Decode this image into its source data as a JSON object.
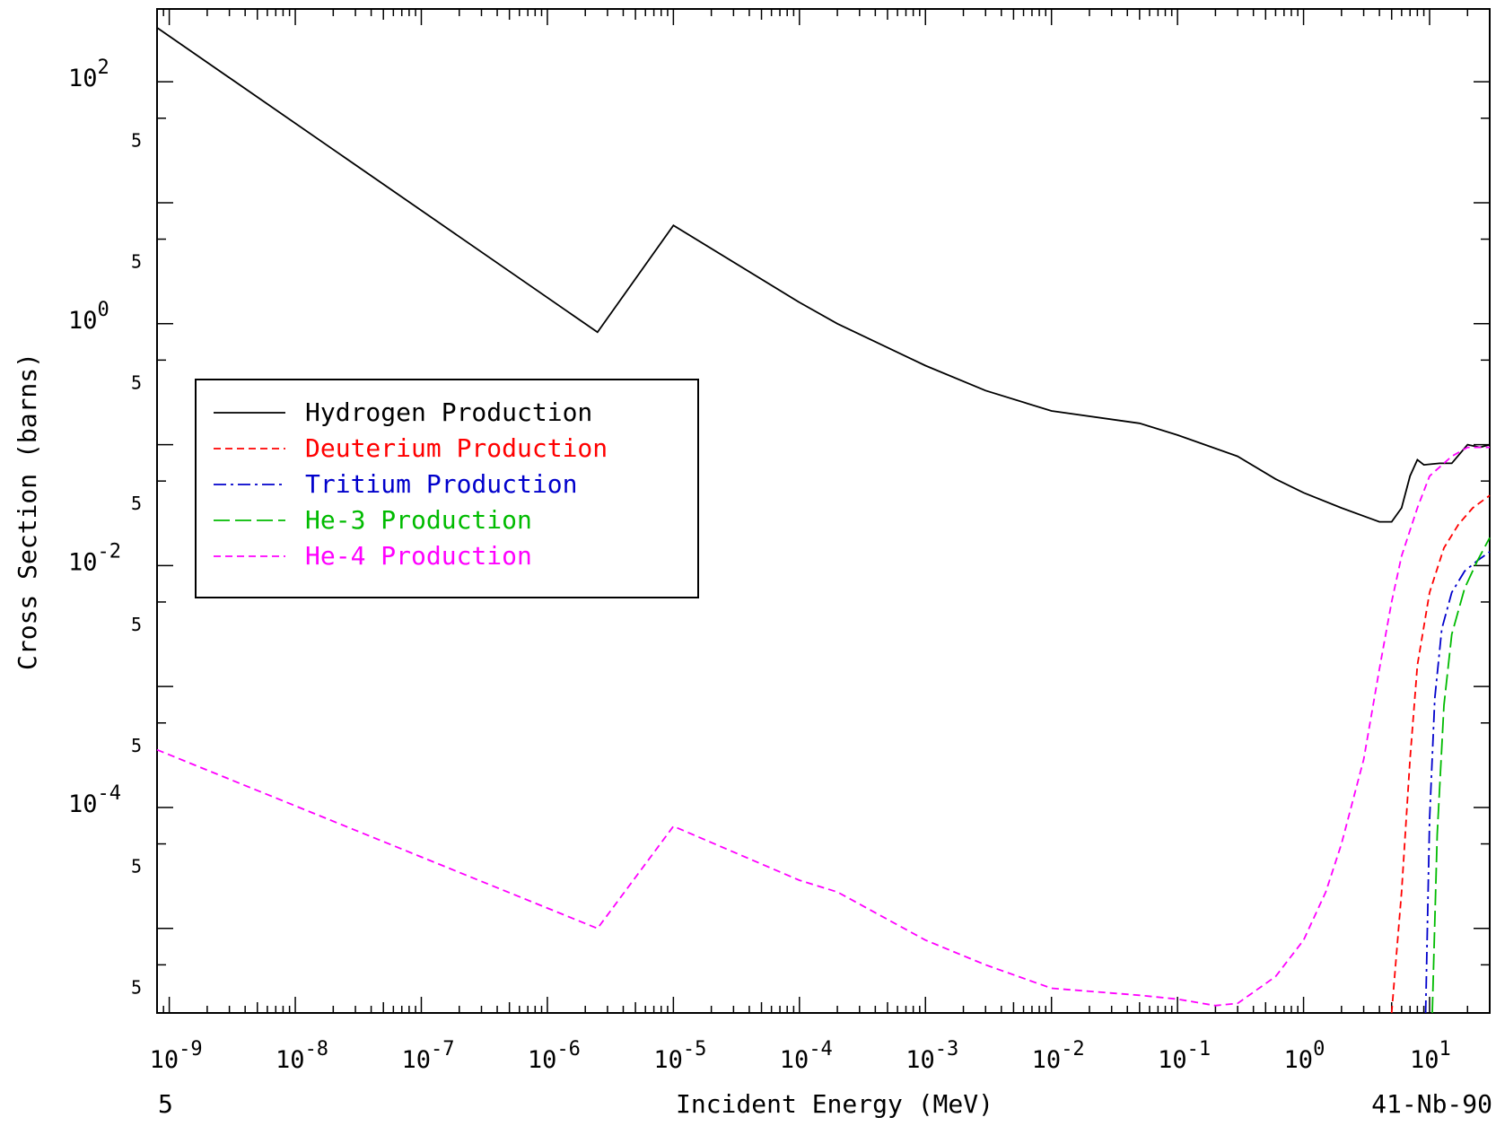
{
  "chart_data": {
    "type": "line",
    "title": "",
    "xlabel": "Incident Energy (MeV)",
    "ylabel": "Cross Section (barns)",
    "xscale": "log",
    "yscale": "log",
    "xlim": [
      8e-10,
      30
    ],
    "ylim": [
      2e-06,
      400
    ],
    "x_tick_labels": [
      {
        "base": "10",
        "exp": "-9"
      },
      {
        "base": "10",
        "exp": "-8"
      },
      {
        "base": "10",
        "exp": "-7"
      },
      {
        "base": "10",
        "exp": "-6"
      },
      {
        "base": "10",
        "exp": "-5"
      },
      {
        "base": "10",
        "exp": "-4"
      },
      {
        "base": "10",
        "exp": "-3"
      },
      {
        "base": "10",
        "exp": "-2"
      },
      {
        "base": "10",
        "exp": "-1"
      },
      {
        "base": "10",
        "exp": "0"
      },
      {
        "base": "10",
        "exp": "1"
      }
    ],
    "y_tick_labels": [
      {
        "base": "10",
        "exp": "2"
      },
      {
        "base": "10",
        "exp": "0"
      },
      {
        "base": "10",
        "exp": "-2"
      },
      {
        "base": "10",
        "exp": "-4"
      }
    ],
    "minor_label": "5",
    "corner_left": "5",
    "corner_right": "41-Nb-90",
    "legend_position": "left-middle",
    "grid": false,
    "series": [
      {
        "name": "Hydrogen Production",
        "color": "#000000",
        "dash": "solid",
        "points": [
          [
            8e-10,
            280
          ],
          [
            2.5e-06,
            0.85
          ],
          [
            1e-05,
            6.5
          ],
          [
            0.0001,
            1.5
          ],
          [
            0.0002,
            1.0
          ],
          [
            0.001,
            0.45
          ],
          [
            0.003,
            0.28
          ],
          [
            0.01,
            0.19
          ],
          [
            0.05,
            0.15
          ],
          [
            0.1,
            0.12
          ],
          [
            0.3,
            0.08
          ],
          [
            0.6,
            0.052
          ],
          [
            1,
            0.04
          ],
          [
            2,
            0.03
          ],
          [
            4,
            0.023
          ],
          [
            5,
            0.023
          ],
          [
            6,
            0.03
          ],
          [
            7,
            0.055
          ],
          [
            8,
            0.075
          ],
          [
            9,
            0.068
          ],
          [
            12,
            0.07
          ],
          [
            15,
            0.07
          ],
          [
            20,
            0.1
          ],
          [
            25,
            0.095
          ],
          [
            30,
            0.1
          ]
        ]
      },
      {
        "name": "Deuterium Production",
        "color": "#ff0000",
        "dash": "dashed",
        "points": [
          [
            5,
            2e-06
          ],
          [
            6,
            2e-05
          ],
          [
            7,
            0.00025
          ],
          [
            8,
            0.0015
          ],
          [
            10,
            0.006
          ],
          [
            13,
            0.014
          ],
          [
            17,
            0.022
          ],
          [
            22,
            0.03
          ],
          [
            30,
            0.038
          ]
        ]
      },
      {
        "name": "Tritium Production",
        "color": "#0000cc",
        "dash": "dashdot",
        "points": [
          [
            9.3,
            2e-06
          ],
          [
            10,
            8e-05
          ],
          [
            11,
            0.0008
          ],
          [
            12.5,
            0.003
          ],
          [
            15,
            0.006
          ],
          [
            19,
            0.009
          ],
          [
            24,
            0.011
          ],
          [
            30,
            0.013
          ]
        ]
      },
      {
        "name": "He-3 Production",
        "color": "#00bb00",
        "dash": "longdash",
        "points": [
          [
            10.5,
            2e-06
          ],
          [
            11.5,
            6e-05
          ],
          [
            13,
            0.0007
          ],
          [
            15,
            0.0027
          ],
          [
            19,
            0.0065
          ],
          [
            24,
            0.011
          ],
          [
            30,
            0.017
          ]
        ]
      },
      {
        "name": "He-4 Production",
        "color": "#ff00ff",
        "dash": "dashed",
        "points": [
          [
            8e-10,
            0.0003
          ],
          [
            2.5e-06,
            1e-05
          ],
          [
            1e-05,
            7e-05
          ],
          [
            0.0001,
            2.5e-05
          ],
          [
            0.0002,
            2e-05
          ],
          [
            0.001,
            8e-06
          ],
          [
            0.003,
            5e-06
          ],
          [
            0.01,
            3.2e-06
          ],
          [
            0.05,
            2.8e-06
          ],
          [
            0.1,
            2.6e-06
          ],
          [
            0.2,
            2.3e-06
          ],
          [
            0.3,
            2.4e-06
          ],
          [
            0.6,
            4e-06
          ],
          [
            1,
            8e-06
          ],
          [
            1.5,
            2e-05
          ],
          [
            2,
            5e-05
          ],
          [
            3,
            0.00025
          ],
          [
            4,
            0.0014
          ],
          [
            5,
            0.005
          ],
          [
            6,
            0.012
          ],
          [
            8,
            0.03
          ],
          [
            10,
            0.055
          ],
          [
            15,
            0.08
          ],
          [
            20,
            0.095
          ],
          [
            30,
            0.095
          ]
        ]
      }
    ]
  }
}
